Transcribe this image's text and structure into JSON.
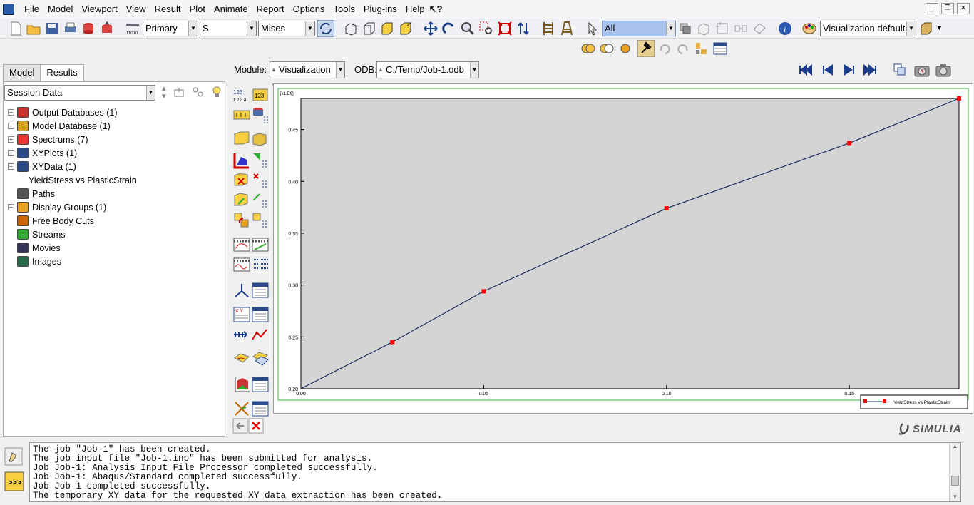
{
  "menu": [
    "File",
    "Model",
    "Viewport",
    "View",
    "Result",
    "Plot",
    "Animate",
    "Report",
    "Options",
    "Tools",
    "Plug-ins",
    "Help"
  ],
  "toolbar": {
    "step_combo": "Primary",
    "var_combo": "S",
    "inv_combo": "Mises",
    "select_combo": "All",
    "vis_combo": "Visualization defaults"
  },
  "tabs": [
    "Model",
    "Results"
  ],
  "session": "Session Data",
  "tree": [
    {
      "label": "Output Databases (1)",
      "exp": "+",
      "icon": "database-stack-icon"
    },
    {
      "label": "Model Database (1)",
      "exp": "+",
      "icon": "model-database-icon"
    },
    {
      "label": "Spectrums (7)",
      "exp": "+",
      "icon": "spectrum-icon"
    },
    {
      "label": "XYPlots (1)",
      "exp": "+",
      "icon": "grid-icon"
    },
    {
      "label": "XYData (1)",
      "exp": "−",
      "icon": "grid-icon"
    },
    {
      "label": "YieldStress vs PlasticStrain",
      "exp": "",
      "icon": ""
    },
    {
      "label": "Paths",
      "exp": "",
      "icon": "path-icon"
    },
    {
      "label": "Display Groups (1)",
      "exp": "+",
      "icon": "display-group-icon"
    },
    {
      "label": "Free Body Cuts",
      "exp": "",
      "icon": "free-body-cut-icon"
    },
    {
      "label": "Streams",
      "exp": "",
      "icon": "streams-icon"
    },
    {
      "label": "Movies",
      "exp": "",
      "icon": "movie-icon"
    },
    {
      "label": "Images",
      "exp": "",
      "icon": "image-icon"
    }
  ],
  "module": {
    "label": "Module:",
    "value": "Visualization",
    "odb_label": "ODB:",
    "odb_value": "C:/Temp/Job-1.odb"
  },
  "chart_data": {
    "type": "line",
    "x": [
      0.0,
      0.025,
      0.05,
      0.1,
      0.15,
      0.18
    ],
    "series": [
      {
        "name": "YieldStress vs PlasticStrain",
        "values": [
          0.2,
          0.245,
          0.294,
          0.374,
          0.437,
          0.48
        ]
      }
    ],
    "xlim": [
      0.0,
      0.18
    ],
    "ylim": [
      0.2,
      0.48
    ],
    "xticks": [
      "0.00",
      "0.05",
      "0.10",
      "0.15"
    ],
    "yticks": [
      "0.20",
      "0.25",
      "0.30",
      "0.35",
      "0.40",
      "0.45"
    ],
    "yscale_label": "[x1.E9]",
    "grid": false,
    "legend": "bottom-right",
    "line_color": "#1b2d5c",
    "marker_color": "#ff0000",
    "background": "#d4d4d4"
  },
  "brand": "SIMULIA",
  "messages": [
    "The job \"Job-1\" has been created.",
    "The job input file \"Job-1.inp\" has been submitted for analysis.",
    "Job Job-1: Analysis Input File Processor completed successfully.",
    "Job Job-1: Abaqus/Standard completed successfully.",
    "Job Job-1 completed successfully.",
    "The temporary XY data for the requested XY data extraction has been created."
  ]
}
